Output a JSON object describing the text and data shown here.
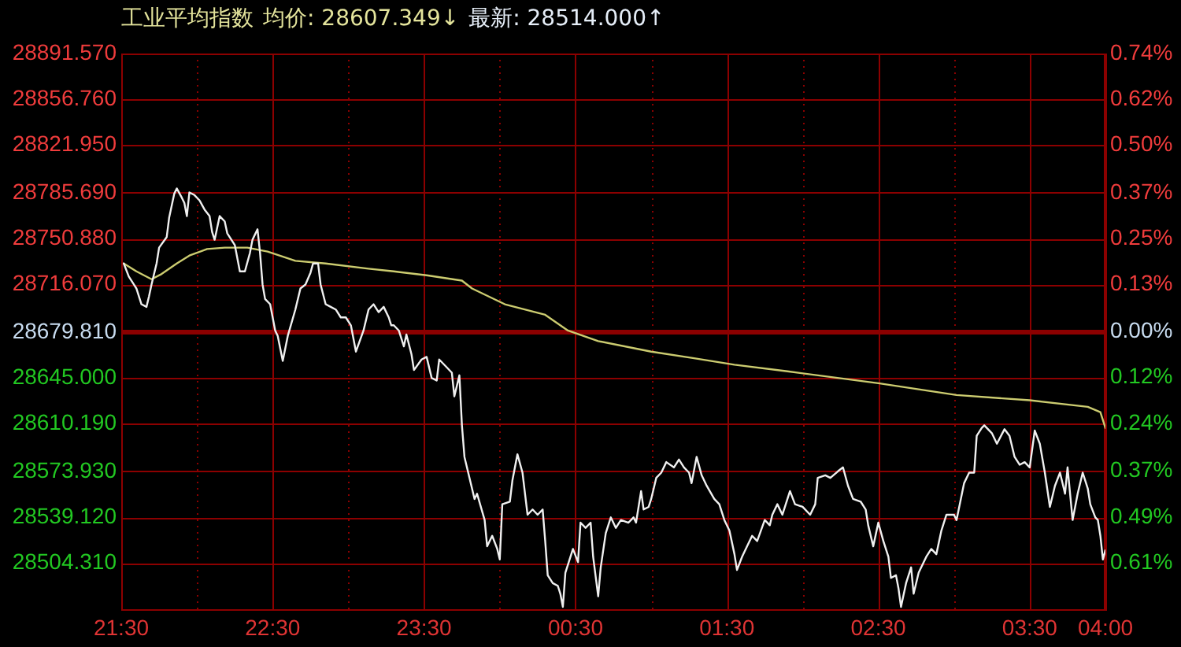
{
  "chart_data": {
    "type": "line",
    "title": "工业平均指数",
    "annotations": [
      "均价: 28607.349↓",
      "最新: 28514.000↑"
    ],
    "series": [
      {
        "color": "#f0f0f0",
        "x": [
          "--01-01T21:31",
          "--01-01T21:33",
          "--01-01T21:35",
          "--01-01T21:36",
          "--01-01T21:38",
          "--01-01T21:40",
          "--01-01T21:41",
          "--01-01T21:42",
          "--01-01T21:44",
          "--01-01T21:45",
          "--01-01T21:48",
          "--01-01T21:49",
          "--01-01T21:51",
          "--01-01T21:52",
          "--01-01T21:54",
          "--01-01T21:55",
          "--01-01T21:56",
          "--01-01T21:57",
          "--01-01T21:59",
          "--01-01T22:01",
          "--01-01T22:03",
          "--01-01T22:05",
          "--01-01T22:06",
          "--01-01T22:07",
          "--01-01T22:09",
          "--01-01T22:11",
          "--01-01T22:12",
          "--01-01T22:15",
          "--01-01T22:17",
          "--01-01T22:19",
          "--01-01T22:21",
          "--01-01T22:22",
          "--01-01T22:24",
          "--01-01T22:25",
          "--01-01T22:26",
          "--01-01T22:27",
          "--01-01T22:29",
          "--01-01T22:31",
          "--01-01T22:32",
          "--01-01T22:34",
          "--01-01T22:36",
          "--01-01T22:39",
          "--01-01T22:41",
          "--01-01T22:43",
          "--01-01T22:45",
          "--01-01T22:46",
          "--01-01T22:48",
          "--01-01T22:49",
          "--01-01T22:51",
          "--01-01T22:53",
          "--01-01T22:55",
          "--01-01T22:57",
          "--01-01T22:59",
          "--01-01T23:01",
          "--01-01T23:03",
          "--01-01T23:06",
          "--01-01T23:08",
          "--01-01T23:10",
          "--01-01T23:12",
          "--01-01T23:14",
          "--01-01T23:16",
          "--01-01T23:17",
          "--01-01T23:18",
          "--01-01T23:20",
          "--01-01T23:22",
          "--01-01T23:23",
          "--01-01T23:25",
          "--01-01T23:26",
          "--01-01T23:29",
          "--01-01T23:31",
          "--01-01T23:33",
          "--01-01T23:35",
          "--01-01T23:36",
          "--01-01T23:39",
          "--01-01T23:41",
          "--01-01T23:42",
          "--01-01T23:44",
          "--01-01T23:45",
          "--01-01T23:46",
          "--01-01T23:48",
          "--01-01T23:50",
          "--01-01T23:51",
          "--01-01T23:54",
          "--01-01T23:55",
          "--01-01T23:57",
          "--01-01T23:59",
          "--01-02T00:00",
          "--01-02T00:01",
          "--01-02T00:04",
          "--01-02T00:05",
          "--01-02T00:07",
          "--01-02T00:09",
          "--01-02T00:11",
          "--01-02T00:13",
          "--01-02T00:15",
          "--01-02T00:17",
          "--01-02T00:18",
          "--01-02T00:19",
          "--01-02T00:21",
          "--01-02T00:23",
          "--01-02T00:24",
          "--01-02T00:25",
          "--01-02T00:26",
          "--01-02T00:29",
          "--01-02T00:31",
          "--01-02T00:32",
          "--01-02T00:34",
          "--01-02T00:36",
          "--01-02T00:37",
          "--01-02T00:39",
          "--01-02T00:40",
          "--01-02T00:42",
          "--01-02T00:44",
          "--01-02T00:46",
          "--01-02T00:48",
          "--01-02T00:51",
          "--01-02T00:53",
          "--01-02T00:54",
          "--01-02T00:56",
          "--01-02T00:57",
          "--01-02T00:59",
          "--01-02T01:00",
          "--01-02T01:02",
          "--01-02T01:04",
          "--01-02T01:06",
          "--01-02T01:09",
          "--01-02T01:11",
          "--01-02T01:13",
          "--01-02T01:15",
          "--01-02T01:16",
          "--01-02T01:18",
          "--01-02T01:20",
          "--01-02T01:22",
          "--01-02T01:25",
          "--01-02T01:27",
          "--01-02T01:29",
          "--01-02T01:31",
          "--01-02T01:33",
          "--01-02T01:34",
          "--01-02T01:36",
          "--01-02T01:38",
          "--01-02T01:40",
          "--01-02T01:42",
          "--01-02T01:45",
          "--01-02T01:47",
          "--01-02T01:48",
          "--01-02T01:50",
          "--01-02T01:52",
          "--01-02T01:55",
          "--01-02T01:57",
          "--01-02T02:00",
          "--01-02T02:03",
          "--01-02T02:05",
          "--01-02T02:06",
          "--01-02T02:09",
          "--01-02T02:11",
          "--01-02T02:14",
          "--01-02T02:16",
          "--01-02T02:18",
          "--01-02T02:20",
          "--01-02T02:23",
          "--01-02T02:25",
          "--01-02T02:26",
          "--01-02T02:28",
          "--01-02T02:30",
          "--01-02T02:32",
          "--01-02T02:34",
          "--01-02T02:35",
          "--01-02T02:37",
          "--01-02T02:38",
          "--01-02T02:39",
          "--01-02T02:41",
          "--01-02T02:43",
          "--01-02T02:44",
          "--01-02T02:46",
          "--01-02T02:49",
          "--01-02T02:51",
          "--01-02T02:53",
          "--01-02T02:55",
          "--01-02T02:57",
          "--01-02T03:00",
          "--01-02T03:01",
          "--01-02T03:04",
          "--01-02T03:06",
          "--01-02T03:08",
          "--01-02T03:09",
          "--01-02T03:11",
          "--01-02T03:12",
          "--01-02T03:15",
          "--01-02T03:17",
          "--01-02T03:20",
          "--01-02T03:22",
          "--01-02T03:24",
          "--01-02T03:26",
          "--01-02T03:28",
          "--01-02T03:30",
          "--01-02T03:32",
          "--01-02T03:34",
          "--01-02T03:36",
          "--01-02T03:38",
          "--01-02T03:40",
          "--01-02T03:42",
          "--01-02T03:44",
          "--01-02T03:45",
          "--01-02T03:47",
          "--01-02T03:49",
          "--01-02T03:51",
          "--01-02T03:53",
          "--01-02T03:54",
          "--01-02T03:56",
          "--01-02T03:57",
          "--01-02T03:58",
          "--01-02T03:59",
          "--01-02T04:00"
        ],
        "values": [
          28732,
          28722,
          28716,
          28713,
          28701,
          28699,
          28707,
          28716,
          28732,
          28744,
          28752,
          28767,
          28785,
          28789,
          28782,
          28778,
          28768,
          28786,
          28784,
          28780,
          28773,
          28768,
          28756,
          28750,
          28768,
          28764,
          28755,
          28746,
          28726,
          28726,
          28740,
          28750,
          28758,
          28740,
          28716,
          28705,
          28701,
          28681,
          28677,
          28658,
          28677,
          28697,
          28713,
          28716,
          28725,
          28732,
          28732,
          28716,
          28701,
          28699,
          28697,
          28691,
          28691,
          28685,
          28665,
          28681,
          28697,
          28701,
          28695,
          28699,
          28691,
          28685,
          28685,
          28681,
          28669,
          28678,
          28663,
          28651,
          28659,
          28661,
          28645,
          28643,
          28659,
          28653,
          28649,
          28631,
          28647,
          28609,
          28585,
          28569,
          28553,
          28557,
          28537,
          28517,
          28525,
          28515,
          28507,
          28549,
          28551,
          28567,
          28587,
          28573,
          28541,
          28545,
          28541,
          28545,
          28521,
          28495,
          28489,
          28487,
          28481,
          28471,
          28497,
          28515,
          28505,
          28535,
          28531,
          28535,
          28509,
          28479,
          28501,
          28527,
          28539,
          28531,
          28537,
          28535,
          28539,
          28535,
          28559,
          28545,
          28547,
          28553,
          28569,
          28573,
          28581,
          28577,
          28583,
          28577,
          28573,
          28565,
          28585,
          28571,
          28563,
          28553,
          28549,
          28537,
          28529,
          28511,
          28499,
          28509,
          28517,
          28525,
          28521,
          28537,
          28533,
          28541,
          28549,
          28541,
          28559,
          28549,
          28547,
          28541,
          28549,
          28569,
          28571,
          28569,
          28574,
          28577,
          28563,
          28553,
          28551,
          28545,
          28533,
          28517,
          28535,
          28521,
          28509,
          28493,
          28495,
          28485,
          28471,
          28489,
          28501,
          28481,
          28497,
          28509,
          28515,
          28511,
          28529,
          28541,
          28541,
          28537,
          28565,
          28573,
          28573,
          28601,
          28607,
          28609,
          28603,
          28595,
          28606,
          28601,
          28585,
          28579,
          28581,
          28577,
          28605,
          28595,
          28573,
          28547,
          28563,
          28573,
          28557,
          28577,
          28537,
          28557,
          28573,
          28561,
          28549,
          28539,
          28537,
          28525,
          28507,
          28514
        ]
      },
      {
        "color": "#cccc70",
        "x": [
          "--01-01T21:31",
          "--01-01T21:36",
          "--01-01T21:42",
          "--01-01T21:46",
          "--01-01T21:52",
          "--01-01T21:57",
          "--01-01T22:04",
          "--01-01T22:11",
          "--01-01T22:20",
          "--01-01T22:28",
          "--01-01T22:39",
          "--01-01T22:51",
          "--01-01T23:08",
          "--01-01T23:18",
          "--01-01T23:31",
          "--01-01T23:45",
          "--01-01T23:49",
          "--01-02T00:02",
          "--01-02T00:18",
          "--01-02T00:27",
          "--01-02T00:39",
          "--01-02T01:00",
          "--01-02T01:17",
          "--01-02T01:33",
          "--01-02T01:54",
          "--01-02T02:30",
          "--01-02T03:01",
          "--01-02T03:30",
          "--01-02T03:53",
          "--01-02T03:58",
          "--01-02T04:00"
        ],
        "values": [
          28732,
          28726,
          28720,
          28724,
          28732,
          28738,
          28743,
          28744,
          28744,
          28741,
          28734,
          28732,
          28728,
          28726,
          28723,
          28719,
          28713,
          28701,
          28693,
          28681,
          28673,
          28665,
          28660,
          28655,
          28650,
          28641,
          28632,
          28628,
          28623,
          28619,
          28607
        ]
      }
    ],
    "xlim": [
      "--01-01T21:30",
      "--01-02T04:00"
    ],
    "xticks": [
      {
        "value": "--01-01T21:30",
        "label": "21:30"
      },
      {
        "value": "--01-01T22:00",
        "label": null
      },
      {
        "value": "--01-01T22:30",
        "label": "22:30"
      },
      {
        "value": "--01-01T23:00",
        "label": null
      },
      {
        "value": "--01-01T23:30",
        "label": "23:30"
      },
      {
        "value": "--01-02T00:00",
        "label": null
      },
      {
        "value": "--01-02T00:30",
        "label": "00:30"
      },
      {
        "value": "--01-02T01:00",
        "label": null
      },
      {
        "value": "--01-02T01:30",
        "label": "01:30"
      },
      {
        "value": "--01-02T02:00",
        "label": null
      },
      {
        "value": "--01-02T02:30",
        "label": "02:30"
      },
      {
        "value": "--01-02T03:00",
        "label": null
      },
      {
        "value": "--01-02T03:30",
        "label": "03:30"
      },
      {
        "value": "--01-02T04:00",
        "label": "04:00"
      }
    ],
    "ylim": [
      28468,
      28891.57
    ],
    "yticks": [
      {
        "value": 28504.31,
        "label": "28504.310"
      },
      {
        "value": 28539.12,
        "label": "28539.120"
      },
      {
        "value": 28573.93,
        "label": "28573.930"
      },
      {
        "value": 28610.19,
        "label": "28610.190"
      },
      {
        "value": 28645,
        "label": "28645.000"
      },
      {
        "value": 28679.81,
        "label": "28679.810"
      },
      {
        "value": 28716.07,
        "label": "28716.070"
      },
      {
        "value": 28750.88,
        "label": "28750.880"
      },
      {
        "value": 28785.69,
        "label": "28785.690"
      },
      {
        "value": 28821.95,
        "label": "28821.950"
      },
      {
        "value": 28856.76,
        "label": "28856.760"
      },
      {
        "value": 28891.57,
        "label": "28891.570"
      }
    ],
    "y2lim": [
      -0.739,
      0.738
    ],
    "y2ticks": [
      {
        "value": -0.612,
        "label": "0.61%"
      },
      {
        "value": -0.491,
        "label": "0.49%"
      },
      {
        "value": -0.369,
        "label": "0.37%"
      },
      {
        "value": -0.243,
        "label": "0.24%"
      },
      {
        "value": -0.121,
        "label": "0.12%"
      },
      {
        "value": 0,
        "label": "0.00%"
      },
      {
        "value": 0.126,
        "label": "0.13%"
      },
      {
        "value": 0.248,
        "label": "0.25%"
      },
      {
        "value": 0.369,
        "label": "0.37%"
      },
      {
        "value": 0.496,
        "label": "0.50%"
      },
      {
        "value": 0.617,
        "label": "0.62%"
      },
      {
        "value": 0.738,
        "label": "0.74%"
      }
    ],
    "ref_lines": [
      {
        "axis": "y",
        "value": 28679.81,
        "color": "#8b0000"
      }
    ],
    "grid": true
  }
}
